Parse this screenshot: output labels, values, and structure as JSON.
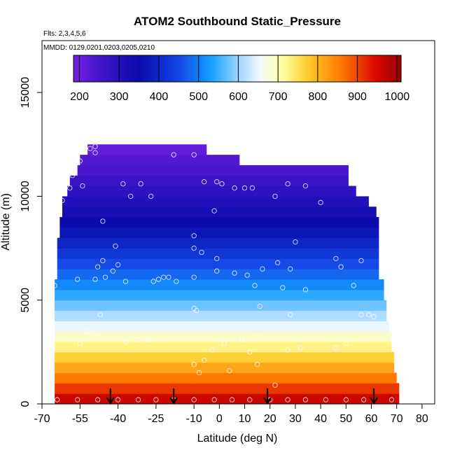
{
  "chart_data": {
    "type": "heatmap",
    "title": "ATOM2 Southbound Static_Pressure",
    "flights_label": "Flts: 2,3,4,5,6",
    "dates_label": "MMDD: 0129,0201,0203,0205,0210",
    "xlabel": "Latitude (deg N)",
    "ylabel": "Altitude (m)",
    "xlim": [
      -70,
      85
    ],
    "ylim": [
      0,
      17500
    ],
    "x_ticks": [
      -70,
      -55,
      -40,
      -25,
      -10,
      0,
      10,
      20,
      30,
      40,
      50,
      60,
      70,
      80
    ],
    "x_tick_labels": [
      "-70",
      "-55",
      "-40",
      "-25",
      "-10",
      "0",
      "10",
      "20",
      "30",
      "40",
      "50",
      "60",
      "70",
      "80"
    ],
    "y_ticks": [
      0,
      5000,
      10000,
      15000
    ],
    "y_tick_labels": [
      "0",
      "5000",
      "10000",
      "15000"
    ],
    "colorbar": {
      "min": 185,
      "max": 1010,
      "ticks": [
        200,
        300,
        400,
        500,
        600,
        700,
        800,
        900,
        1000
      ],
      "tick_labels": [
        "200",
        "300",
        "400",
        "500",
        "600",
        "700",
        "800",
        "900",
        "1000"
      ]
    },
    "grid": false,
    "bin_height_m": 500,
    "bins": [
      {
        "alt": 250,
        "lat_min": -65,
        "lat_max": 71,
        "value": 960
      },
      {
        "alt": 750,
        "lat_min": -65,
        "lat_max": 71,
        "value": 910
      },
      {
        "alt": 1250,
        "lat_min": -65,
        "lat_max": 70,
        "value": 860
      },
      {
        "alt": 1750,
        "lat_min": -65,
        "lat_max": 69,
        "value": 815
      },
      {
        "alt": 2250,
        "lat_min": -65,
        "lat_max": 69,
        "value": 770
      },
      {
        "alt": 2750,
        "lat_min": -65,
        "lat_max": 68,
        "value": 728
      },
      {
        "alt": 3250,
        "lat_min": -65,
        "lat_max": 68,
        "value": 688
      },
      {
        "alt": 3750,
        "lat_min": -65,
        "lat_max": 67,
        "value": 650
      },
      {
        "alt": 4250,
        "lat_min": -65,
        "lat_max": 66,
        "value": 612
      },
      {
        "alt": 4750,
        "lat_min": -65,
        "lat_max": 66,
        "value": 577
      },
      {
        "alt": 5250,
        "lat_min": -65,
        "lat_max": 65,
        "value": 543
      },
      {
        "alt": 5750,
        "lat_min": -65,
        "lat_max": 65,
        "value": 511
      },
      {
        "alt": 6250,
        "lat_min": -64,
        "lat_max": 63,
        "value": 480
      },
      {
        "alt": 6750,
        "lat_min": -64,
        "lat_max": 63,
        "value": 452
      },
      {
        "alt": 7250,
        "lat_min": -64,
        "lat_max": 63,
        "value": 424
      },
      {
        "alt": 7750,
        "lat_min": -64,
        "lat_max": 63,
        "value": 397
      },
      {
        "alt": 8250,
        "lat_min": -63,
        "lat_max": 63,
        "value": 372
      },
      {
        "alt": 8750,
        "lat_min": -63,
        "lat_max": 63,
        "value": 349
      },
      {
        "alt": 9250,
        "lat_min": -62,
        "lat_max": 62,
        "value": 326
      },
      {
        "alt": 9750,
        "lat_min": -62,
        "lat_max": 59,
        "value": 304
      },
      {
        "alt": 10250,
        "lat_min": -60,
        "lat_max": 54,
        "value": 284
      },
      {
        "alt": 10750,
        "lat_min": -59,
        "lat_max": 51,
        "value": 265
      },
      {
        "alt": 11250,
        "lat_min": -56,
        "lat_max": 51,
        "value": 246
      },
      {
        "alt": 11750,
        "lat_min": -55,
        "lat_max": 8,
        "value": 229
      },
      {
        "alt": 12250,
        "lat_min": -52,
        "lat_max": -5,
        "value": 212
      }
    ],
    "observation_points": [
      [
        -64,
        200
      ],
      [
        -56,
        200
      ],
      [
        -48,
        200
      ],
      [
        -40,
        200
      ],
      [
        -32,
        200
      ],
      [
        -25,
        200
      ],
      [
        -18,
        200
      ],
      [
        -10,
        200
      ],
      [
        -2,
        200
      ],
      [
        5,
        200
      ],
      [
        12,
        200
      ],
      [
        20,
        200
      ],
      [
        27,
        200
      ],
      [
        34,
        200
      ],
      [
        42,
        200
      ],
      [
        50,
        200
      ],
      [
        57,
        200
      ],
      [
        68,
        200
      ],
      [
        22,
        900
      ],
      [
        -8,
        1500
      ],
      [
        -10,
        1900
      ],
      [
        4,
        1600
      ],
      [
        15,
        1900
      ],
      [
        -3,
        2600
      ],
      [
        -6,
        2100
      ],
      [
        12,
        2500
      ],
      [
        27,
        2600
      ],
      [
        32,
        2700
      ],
      [
        46,
        2700
      ],
      [
        50,
        2900
      ],
      [
        -55,
        2900
      ],
      [
        -49,
        3300
      ],
      [
        -37,
        3000
      ],
      [
        -32,
        3100
      ],
      [
        -28,
        3100
      ],
      [
        2,
        2900
      ],
      [
        9,
        3100
      ],
      [
        15,
        3200
      ],
      [
        -52,
        3500
      ],
      [
        -47,
        4300
      ],
      [
        -9,
        4500
      ],
      [
        -10,
        4600
      ],
      [
        16,
        4700
      ],
      [
        28,
        4300
      ],
      [
        56,
        4300
      ],
      [
        59,
        4300
      ],
      [
        61,
        4200
      ],
      [
        -65,
        5700
      ],
      [
        -56,
        6000
      ],
      [
        -49,
        6000
      ],
      [
        -45,
        6100
      ],
      [
        -42,
        6400
      ],
      [
        -37,
        5900
      ],
      [
        -26,
        5900
      ],
      [
        -20,
        6100
      ],
      [
        -17,
        5900
      ],
      [
        -10,
        6100
      ],
      [
        -24,
        6000
      ],
      [
        -22,
        6100
      ],
      [
        -1,
        6400
      ],
      [
        6,
        6300
      ],
      [
        11,
        6200
      ],
      [
        14,
        5700
      ],
      [
        17,
        6500
      ],
      [
        25,
        5600
      ],
      [
        28,
        6500
      ],
      [
        34,
        5500
      ],
      [
        46,
        7000
      ],
      [
        48,
        6600
      ],
      [
        53,
        5700
      ],
      [
        56,
        6900
      ],
      [
        -48,
        6600
      ],
      [
        -46,
        6900
      ],
      [
        -40,
        6700
      ],
      [
        -41,
        7600
      ],
      [
        -10,
        7500
      ],
      [
        -7,
        7300
      ],
      [
        -1,
        7000
      ],
      [
        23,
        6800
      ],
      [
        30,
        7800
      ],
      [
        -10,
        8100
      ],
      [
        -46,
        8800
      ],
      [
        -2,
        9300
      ],
      [
        -62,
        9800
      ],
      [
        -54,
        10500
      ],
      [
        -59,
        10400
      ],
      [
        -38,
        10600
      ],
      [
        -35,
        10000
      ],
      [
        -31,
        10600
      ],
      [
        -27,
        10000
      ],
      [
        -6,
        10700
      ],
      [
        -1,
        10700
      ],
      [
        1,
        10600
      ],
      [
        6,
        10400
      ],
      [
        10,
        10400
      ],
      [
        13,
        10400
      ],
      [
        22,
        10000
      ],
      [
        27,
        10600
      ],
      [
        34,
        10500
      ],
      [
        40,
        9700
      ],
      [
        -55,
        11700
      ],
      [
        -58,
        11000
      ],
      [
        -51,
        12300
      ],
      [
        -49,
        12100
      ],
      [
        -49,
        12400
      ],
      [
        -18,
        12000
      ],
      [
        -10,
        12000
      ]
    ],
    "arrow_latitudes": [
      -43,
      -18,
      19,
      61
    ]
  }
}
